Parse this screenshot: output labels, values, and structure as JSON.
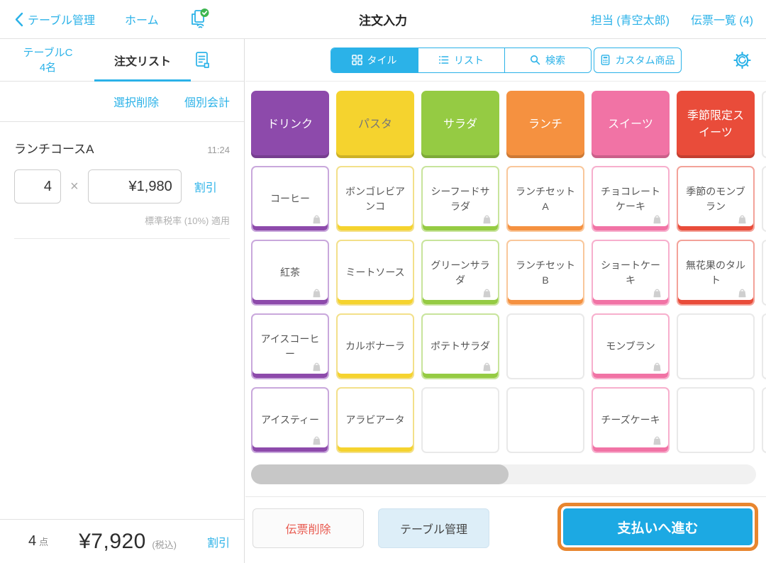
{
  "topbar": {
    "back": "テーブル管理",
    "home": "ホーム",
    "title": "注文入力",
    "staff": "担当 (青空太郎)",
    "slips": "伝票一覧 (4)"
  },
  "left": {
    "table_name": "テーブルC",
    "guests": "4名",
    "tab": "注文リスト",
    "select_delete": "選択削除",
    "split_bill": "個別会計",
    "item": {
      "name": "ランチコースA",
      "time": "11:24",
      "qty": "4",
      "times": "×",
      "price": "¥1,980",
      "discount": "割引",
      "tax_note": "標準税率 (10%) 適用"
    },
    "summary": {
      "count": "4",
      "unit": "点",
      "total": "¥7,920",
      "tax": "(税込)",
      "discount": "割引"
    }
  },
  "right": {
    "view_tabs": [
      {
        "label": "タイル",
        "active": true
      },
      {
        "label": "リスト",
        "active": false
      },
      {
        "label": "検索",
        "active": false
      },
      {
        "label": "カスタム商品",
        "active": false
      }
    ],
    "scrollbar_thumb_percent": 51,
    "buttons": {
      "delete_slip": "伝票削除",
      "table_manage": "テーブル管理",
      "pay": "支払いへ進む"
    }
  },
  "colors": {
    "accent_blue": "#2bb2e8",
    "pay_button_blue": "#1ca9e3",
    "highlight_ring_orange": "#e8862f",
    "delete_red": "#e8584e",
    "table_button_bg": "#ddeef8",
    "status_check_green": "#3eb650"
  },
  "palette": {
    "purple": {
      "main": "#8d4aab",
      "tint": "#c9a8dc",
      "text": "#ffffff"
    },
    "yellow": {
      "main": "#f5d32e",
      "tint": "#f3e08a",
      "text": "#777777"
    },
    "green": {
      "main": "#95cb43",
      "tint": "#c8e49c",
      "text": "#ffffff"
    },
    "orange": {
      "main": "#f59140",
      "tint": "#f9c79b",
      "text": "#ffffff"
    },
    "pink": {
      "main": "#f173a5",
      "tint": "#f7afcd",
      "text": "#ffffff"
    },
    "red": {
      "main": "#e94c3a",
      "tint": "#f3a299",
      "text": "#ffffff"
    }
  },
  "grid": {
    "categories": [
      {
        "label": "ドリンク",
        "c": "purple"
      },
      {
        "label": "パスタ",
        "c": "yellow"
      },
      {
        "label": "サラダ",
        "c": "green"
      },
      {
        "label": "ランチ",
        "c": "orange"
      },
      {
        "label": "スイーツ",
        "c": "pink"
      },
      {
        "label": "季節限定スイーツ",
        "c": "red"
      },
      {
        "label": ""
      }
    ],
    "products": [
      [
        {
          "label": "コーヒー",
          "c": "purple",
          "bag": true
        },
        {
          "label": "ボンゴレビアンコ",
          "c": "yellow"
        },
        {
          "label": "シーフードサラダ",
          "c": "green",
          "bag": true
        },
        {
          "label": "ランチセットA",
          "c": "orange"
        },
        {
          "label": "チョコレートケーキ",
          "c": "pink",
          "bag": true
        },
        {
          "label": "季節のモンブラン",
          "c": "red",
          "bag": true
        },
        {
          "label": ""
        }
      ],
      [
        {
          "label": "紅茶",
          "c": "purple",
          "bag": true
        },
        {
          "label": "ミートソース",
          "c": "yellow"
        },
        {
          "label": "グリーンサラダ",
          "c": "green",
          "bag": true
        },
        {
          "label": "ランチセットB",
          "c": "orange"
        },
        {
          "label": "ショートケーキ",
          "c": "pink",
          "bag": true
        },
        {
          "label": "無花果のタルト",
          "c": "red",
          "bag": true
        },
        {
          "label": ""
        }
      ],
      [
        {
          "label": "アイスコーヒー",
          "c": "purple",
          "bag": true
        },
        {
          "label": "カルボナーラ",
          "c": "yellow"
        },
        {
          "label": "ポテトサラダ",
          "c": "green",
          "bag": true
        },
        {
          "label": ""
        },
        {
          "label": "モンブラン",
          "c": "pink",
          "bag": true
        },
        {
          "label": ""
        },
        {
          "label": ""
        }
      ],
      [
        {
          "label": "アイスティー",
          "c": "purple",
          "bag": true
        },
        {
          "label": "アラビアータ",
          "c": "yellow"
        },
        {
          "label": ""
        },
        {
          "label": ""
        },
        {
          "label": "チーズケーキ",
          "c": "pink",
          "bag": true
        },
        {
          "label": ""
        },
        {
          "label": ""
        }
      ]
    ]
  }
}
